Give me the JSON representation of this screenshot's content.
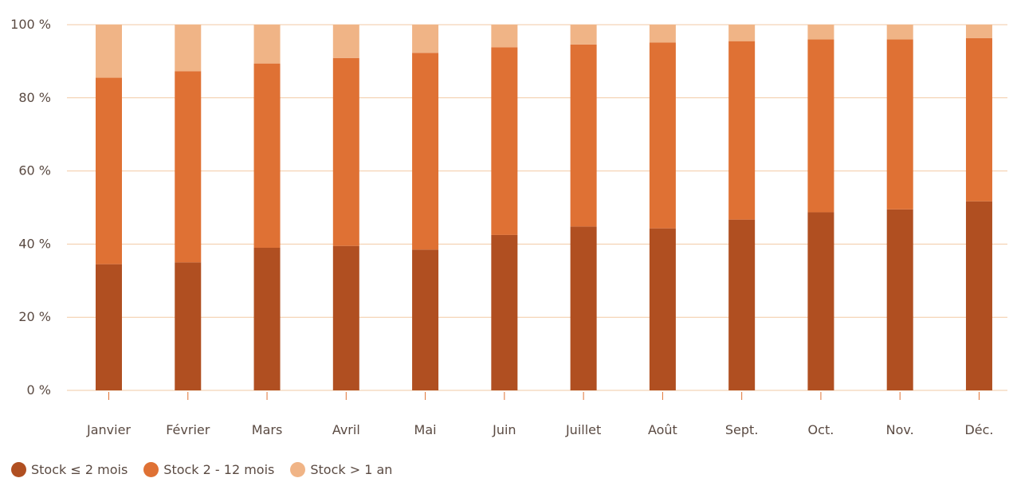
{
  "chart_data": {
    "type": "bar",
    "stacked": true,
    "categories": [
      "Janvier",
      "Février",
      "Mars",
      "Avril",
      "Mai",
      "Juin",
      "Juillet",
      "Août",
      "Sept.",
      "Oct.",
      "Nov.",
      "Déc."
    ],
    "series": [
      {
        "name": "Stock ≤ 2 mois",
        "color": "#b04f21",
        "values": [
          34.5,
          35,
          39,
          39.5,
          38.5,
          42.5,
          44.8,
          44.3,
          46.7,
          48.7,
          49.5,
          51.7
        ]
      },
      {
        "name": "Stock 2 - 12 mois",
        "color": "#df7134",
        "values": [
          51,
          52.3,
          50.4,
          51.4,
          53.8,
          51.3,
          49.8,
          50.8,
          48.8,
          47.3,
          46.5,
          44.6
        ]
      },
      {
        "name": "Stock > 1 an",
        "color": "#f0b486",
        "values": [
          14.5,
          12.7,
          10.6,
          9.1,
          7.7,
          6.2,
          5.4,
          4.9,
          4.5,
          4,
          4,
          3.7
        ]
      }
    ],
    "ylim": [
      0,
      100
    ],
    "yticks": [
      "0 %",
      "20 %",
      "40 %",
      "60 %",
      "80 %",
      "100 %"
    ],
    "grid": true,
    "gridColor": "#f2c9a4",
    "legend_position": "bottom-left"
  }
}
